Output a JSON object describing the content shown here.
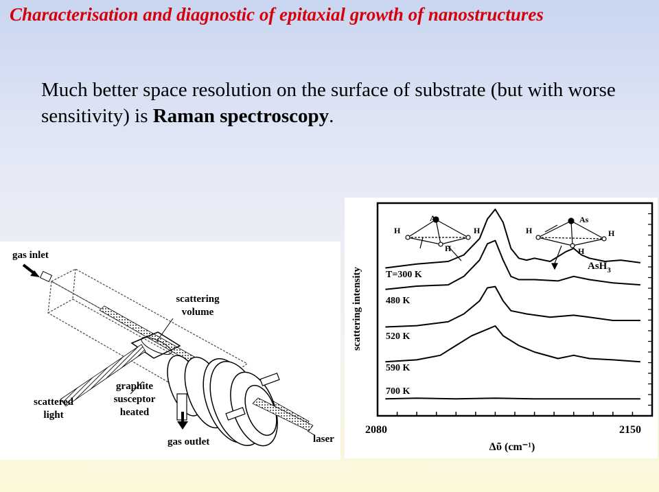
{
  "slide": {
    "title": "Characterisation and diagnostic of epitaxial growth of  nanostructures",
    "text_part1": "Much better space resolution on the surface of substrate (but with worse sensitivity) is  ",
    "text_bold": "Raman spectroscopy",
    "text_end": "."
  },
  "apparatus": {
    "gas_inlet": "gas inlet",
    "scattering_volume_1": "scattering",
    "scattering_volume_2": "volume",
    "graphite_1": "graphite",
    "graphite_2": "susceptor",
    "graphite_3": "heated",
    "scattered_1": "scattered",
    "scattered_2": "light",
    "gas_outlet": "gas outlet",
    "laser": "laser"
  },
  "spectrum": {
    "ylabel": "scattering intensity",
    "x_min_label": "2080",
    "x_max_label": "2150",
    "xlabel": "Δῦ (cm⁻¹)",
    "temps": [
      "T=300 K",
      "480 K",
      "520 K",
      "590 K",
      "700 K"
    ],
    "molecule": "AsH",
    "molecule_sub": "3",
    "atom_as": "As",
    "atom_h": "H"
  },
  "chart_data": {
    "type": "line",
    "xlabel": "Δῦ (cm⁻¹)",
    "ylabel": "scattering intensity",
    "xlim": [
      2080,
      2150
    ],
    "series": [
      {
        "name": "T=300 K",
        "x": [
          2082,
          2090,
          2098,
          2102,
          2106,
          2108,
          2110,
          2112,
          2114,
          2116,
          2118,
          2120,
          2124,
          2128,
          2130,
          2132,
          2134,
          2138,
          2142,
          2147
        ],
        "values": [
          0.1,
          0.16,
          0.2,
          0.3,
          0.55,
          0.85,
          1.0,
          0.8,
          0.4,
          0.25,
          0.22,
          0.25,
          0.2,
          0.35,
          0.4,
          0.3,
          0.25,
          0.2,
          0.22,
          0.18
        ]
      },
      {
        "name": "480 K",
        "x": [
          2082,
          2090,
          2098,
          2102,
          2106,
          2108,
          2110,
          2112,
          2114,
          2116,
          2120,
          2126,
          2130,
          2134,
          2140,
          2147
        ],
        "values": [
          0.15,
          0.2,
          0.22,
          0.35,
          0.6,
          0.85,
          0.9,
          0.6,
          0.35,
          0.3,
          0.3,
          0.28,
          0.35,
          0.3,
          0.25,
          0.22
        ]
      },
      {
        "name": "520 K",
        "x": [
          2082,
          2090,
          2098,
          2102,
          2106,
          2108,
          2110,
          2112,
          2114,
          2118,
          2124,
          2130,
          2134,
          2140,
          2147
        ],
        "values": [
          0.1,
          0.12,
          0.18,
          0.3,
          0.5,
          0.7,
          0.72,
          0.5,
          0.35,
          0.3,
          0.25,
          0.28,
          0.25,
          0.2,
          0.2
        ]
      },
      {
        "name": "590 K",
        "x": [
          2082,
          2090,
          2096,
          2100,
          2104,
          2108,
          2110,
          2112,
          2116,
          2120,
          2126,
          2130,
          2134,
          2140,
          2147
        ],
        "values": [
          0.05,
          0.08,
          0.15,
          0.3,
          0.45,
          0.55,
          0.6,
          0.45,
          0.3,
          0.2,
          0.1,
          0.15,
          0.1,
          0.08,
          0.05
        ]
      },
      {
        "name": "700 K",
        "x": [
          2082,
          2090,
          2100,
          2110,
          2120,
          2130,
          2140,
          2147
        ],
        "values": [
          0.05,
          0.06,
          0.05,
          0.06,
          0.05,
          0.05,
          0.05,
          0.05
        ]
      }
    ]
  }
}
